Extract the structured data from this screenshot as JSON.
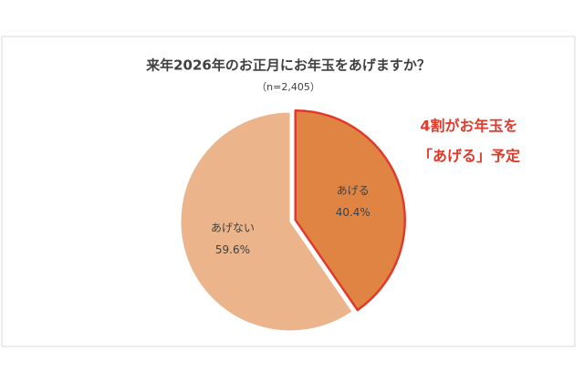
{
  "chart_data": {
    "type": "pie",
    "title": "来年2026年のお正月にお年玉をあげますか？",
    "subtitle": "（n=2,405）",
    "categories": [
      "あげる",
      "あげない"
    ],
    "values": [
      40.4,
      59.6
    ],
    "value_labels": [
      "40.4%",
      "59.6%"
    ],
    "colors": [
      "#e08444",
      "#ebb48b"
    ],
    "annotation": [
      "4割がお年玉を",
      "「あげる」予定"
    ],
    "annotation_color": "#e03a2a"
  }
}
